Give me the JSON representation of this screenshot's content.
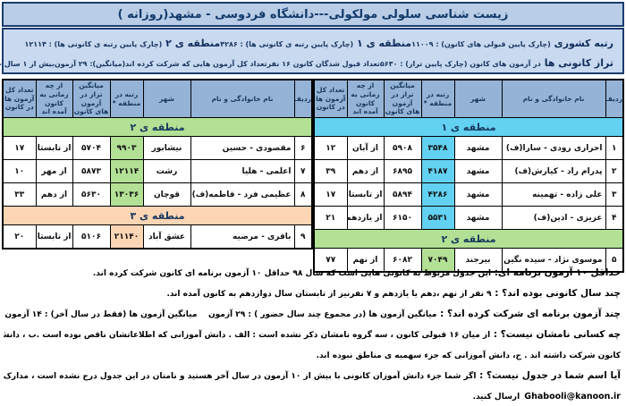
{
  "title": "زیست شناسی سلولی مولکولی---دانشگاه فردوسی - مشهد(روزانه )",
  "colors": {
    "region1": "#63d1f1",
    "region2": "#b2e095",
    "region3": "#fcd5b4",
    "table_header_blue": "#95b3d7",
    "title_bar_blue": "#b9cde6",
    "border_navy": "#1c3c6e"
  },
  "summary": {
    "row1": [
      {
        "strong": "رتبه کشوری",
        "rest": "(چارک پایین قبولی های کانون) : ۱۱۰۰۹"
      },
      {
        "strong": "منطقه ی ۱",
        "rest": "(چارک پایین رتبه ی کانونی ها) : ۴۲۸۶"
      },
      {
        "strong": "منطقه ی ۲",
        "rest": "(چارک پایین رتبه ی کانونی ها) : ۱۲۱۱۴"
      }
    ],
    "row2": [
      {
        "strong": "تراز کانونی ها",
        "rest": "در آزمون های کانون (چارک پایین تراز) : ۵۶۳۰"
      },
      {
        "strong": "",
        "rest": "تعداد قبول شدگان کانون ۱۶ نفر"
      },
      {
        "strong": "",
        "rest": "تعداد کل آزمون هایی که شرکت کرده اند(میانگین): ۲۹ آزمون"
      },
      {
        "strong": "",
        "rest": "بیش از ۱ سال حضور در آزمون های کانون: ۹ نفر"
      }
    ]
  },
  "table_headers": [
    "ردیف",
    "نام خانوادگی و نام",
    "شهر",
    "رتبه در منطقه *",
    "میانگین تراز در آزمون های کانون",
    "از چه زمانی به کانون آمده اند",
    "تعداد کل آزمون ها در کانون"
  ],
  "tables": {
    "right": {
      "sections": [
        {
          "label": "منطقه ی ۱",
          "region": "region1",
          "rows": [
            {
              "no": "۱",
              "name": "احراری رودی - سارا(ف)",
              "city": "مشهد",
              "rank": "۳۵۴۸",
              "avg": "۵۹۰۸",
              "since": "از آبان",
              "total": "۱۲"
            },
            {
              "no": "۲",
              "name": "پدرام راد - کیارش(ف)",
              "city": "مشهد",
              "rank": "۴۱۸۷",
              "avg": "۶۸۹۵",
              "since": "از دهم",
              "total": "۳۹"
            },
            {
              "no": "۳",
              "name": "علی زاده - تهمینه",
              "city": "مشهد",
              "rank": "۴۲۸۶",
              "avg": "۵۸۹۴",
              "since": "از تابستان",
              "total": "۱۷"
            },
            {
              "no": "۴",
              "name": "عزیزی - اذین(ف)",
              "city": "مشهد",
              "rank": "۵۵۳۱",
              "avg": "۶۱۵۰",
              "since": "از یازدهم",
              "total": "۲۱"
            }
          ]
        },
        {
          "label": "منطقه ی ۲",
          "region": "region2",
          "rows": [
            {
              "no": "۵",
              "name": "موسوی نژاد - سیده نگین",
              "city": "بیرجند",
              "rank": "۷۰۴۹",
              "avg": "۶۰۸۲",
              "since": "از نهم",
              "total": "۷۷"
            }
          ]
        }
      ]
    },
    "left": {
      "sections": [
        {
          "label": "منطقه ی ۲",
          "region": "region2",
          "rows": [
            {
              "no": "۶",
              "name": "مقصودی - حسین",
              "city": "نیشابور",
              "rank": "۹۹۰۳",
              "avg": "۵۷۰۴",
              "since": "از تابستان",
              "total": "۱۷"
            },
            {
              "no": "۷",
              "name": "اعلمی - هلیا",
              "city": "رشت",
              "rank": "۱۲۱۱۴",
              "avg": "۵۸۷۳",
              "since": "از مهر",
              "total": "۱۰"
            },
            {
              "no": "۸",
              "name": "عظیمی فرد - فاطمه(ف)",
              "city": "قوچان",
              "rank": "۱۳۰۳۶",
              "avg": "۵۶۳۰",
              "since": "از دهم",
              "total": "۳۳"
            }
          ]
        },
        {
          "label": "منطقه ی ۳",
          "region": "region3",
          "rows": [
            {
              "no": "۹",
              "name": "باقری - مرضیه",
              "city": "عشق آباد",
              "rank": "۲۱۱۴۰",
              "avg": "۵۱۰۶",
              "since": "از تابستان",
              "total": "۲۰"
            }
          ]
        }
      ]
    }
  },
  "notes": [
    {
      "lead": "حداقل ۱۰ آزمون برنامه ای:",
      "text": "این جدول مربوط به کانونی هایی است که سال ۹۸ حداقل ۱۰ آزمون برنامه ای کانون شرکت کرده اند."
    },
    {
      "lead": "چند سال کانونی بوده اند؟ :",
      "text": "۹ نفر از نهم ،دهم یا یازدهم و ۷ نفرنیز از تابستان سال دوازدهم به کانون آمده اند."
    },
    {
      "lead": "چند آزمون برنامه ای شرکت کرده اند؟ :",
      "text": "میانگین آزمون ها (در مجموع چند سال حضور ) : ۲۹ آزمون    میانگین آزمون ها (فقط در سال آخر) : ۱۴ آزمون"
    },
    {
      "lead": "چه کسانی نامشان نیست؟ :",
      "text": "از میان ۱۶ قبولی کانون ، سه گروه نامشان ذکر نشده است : الف . دانش آموزانی که اطلاعاتشان ناقص بوده است .ب ، دانش آموزانی که در کمتر از ۱۰ آزمون برنامه ای"
    },
    {
      "lead": "",
      "text": "کانون شرکت داشته اند . ج، دانش آموزانی که جزء سهمیه ی مناطق نبوده اند."
    },
    {
      "lead": "آیا اسم شما در جدول نیست؟ :",
      "text": "اگر شما جزء دانش آموزان کانونی با بیش از ۱۰ آزمون در سال آخر هستید و نامتان در این جدول درج نشده است ، مدارک خود را از طریق ای میل به نشانی"
    },
    {
      "lead": "",
      "email": "Ghabooli@kanoon.ir",
      "text": "ارسال کنید."
    }
  ]
}
